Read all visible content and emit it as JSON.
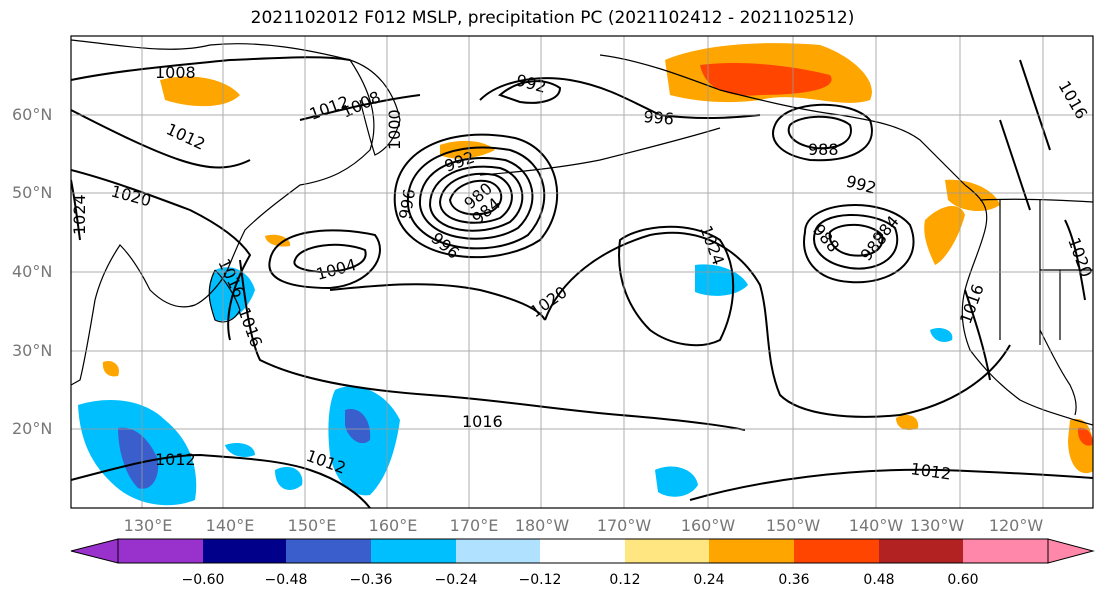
{
  "title": "2021102012 F012 MSLP, precipitation PC (2021102412 - 2021102512)",
  "lat_labels": [
    "60°N",
    "50°N",
    "40°N",
    "30°N",
    "20°N"
  ],
  "lon_labels": [
    "130°E",
    "140°E",
    "150°E",
    "160°E",
    "170°E",
    "180°W",
    "170°W",
    "160°W",
    "150°W",
    "140°W",
    "130°W",
    "120°W"
  ],
  "isobar_labels": [
    "1008",
    "1012",
    "1008",
    "1012",
    "1020",
    "1024",
    "992",
    "1000",
    "992",
    "996",
    "996",
    "988",
    "980",
    "984",
    "1004",
    "1020",
    "1016",
    "1024",
    "996",
    "988",
    "992",
    "988",
    "984",
    "1016",
    "1012",
    "1016",
    "1020",
    "1012",
    "1012",
    "1016",
    "1016"
  ],
  "colorbar": {
    "ticks": [
      "−0.60",
      "−0.48",
      "−0.36",
      "−0.24",
      "−0.12",
      "0.12",
      "0.24",
      "0.36",
      "0.48",
      "0.60"
    ],
    "colors": [
      "#9932cc",
      "#00008b",
      "#3a5fcd",
      "#00bfff",
      "#b0e2ff",
      "#ffffff",
      "#ffe680",
      "#ffa500",
      "#ff4500",
      "#b22222",
      "#ff88aa",
      "#ff88aa"
    ]
  }
}
